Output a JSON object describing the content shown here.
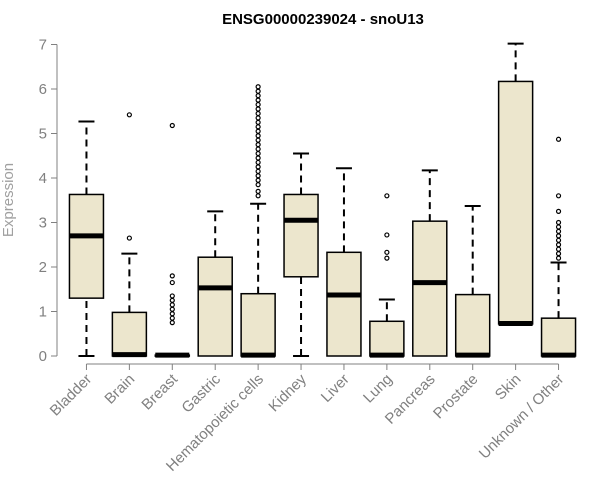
{
  "chart_data": {
    "type": "box",
    "title": "ENSG00000239024 - snoU13",
    "xlabel": "",
    "ylabel": "Expression",
    "ylim": [
      0,
      7
    ],
    "yticks": [
      0,
      1,
      2,
      3,
      4,
      5,
      6,
      7
    ],
    "grid": false,
    "categories": [
      "Bladder",
      "Brain",
      "Breast",
      "Gastric",
      "Hematopoietic cells",
      "Kidney",
      "Liver",
      "Lung",
      "Pancreas",
      "Prostate",
      "Skin",
      "Unknown / Other"
    ],
    "boxes": [
      {
        "min": 0,
        "q1": 1.3,
        "median": 2.7,
        "q3": 3.63,
        "max": 5.27,
        "outliers": []
      },
      {
        "min": 0,
        "q1": 0,
        "median": 0.03,
        "q3": 0.98,
        "max": 2.3,
        "outliers": [
          2.65,
          5.42
        ]
      },
      {
        "min": 0,
        "q1": 0,
        "median": 0.02,
        "q3": 0.02,
        "max": 0.02,
        "outliers": [
          0.75,
          0.85,
          0.95,
          1.05,
          1.15,
          1.25,
          1.35,
          1.65,
          1.8,
          5.18
        ]
      },
      {
        "min": 0,
        "q1": 0,
        "median": 1.53,
        "q3": 2.22,
        "max": 3.25,
        "outliers": []
      },
      {
        "min": 0,
        "q1": 0,
        "median": 0.02,
        "q3": 1.4,
        "max": 3.42,
        "outliers": [
          3.6,
          3.7,
          3.85,
          3.95,
          4.05,
          4.15,
          4.25,
          4.35,
          4.45,
          4.55,
          4.65,
          4.75,
          4.85,
          4.95,
          5.05,
          5.15,
          5.25,
          5.35,
          5.45,
          5.55,
          5.65,
          5.75,
          5.85,
          5.95,
          6.05
        ]
      },
      {
        "min": 0,
        "q1": 1.78,
        "median": 3.05,
        "q3": 3.63,
        "max": 4.55,
        "outliers": []
      },
      {
        "min": 0,
        "q1": 0,
        "median": 1.37,
        "q3": 2.33,
        "max": 4.22,
        "outliers": []
      },
      {
        "min": 0,
        "q1": 0,
        "median": 0.02,
        "q3": 0.78,
        "max": 1.27,
        "outliers": [
          2.2,
          2.33,
          2.72,
          3.6
        ]
      },
      {
        "min": 0,
        "q1": 0,
        "median": 1.65,
        "q3": 3.03,
        "max": 4.17,
        "outliers": []
      },
      {
        "min": 0,
        "q1": 0,
        "median": 0.02,
        "q3": 1.38,
        "max": 3.37,
        "outliers": []
      },
      {
        "min": 0.72,
        "q1": 0.72,
        "median": 0.73,
        "q3": 6.17,
        "max": 7.02,
        "outliers": []
      },
      {
        "min": 0,
        "q1": 0,
        "median": 0.02,
        "q3": 0.85,
        "max": 2.1,
        "outliers": [
          2.2,
          2.3,
          2.4,
          2.5,
          2.6,
          2.7,
          2.8,
          2.9,
          3.0,
          3.25,
          3.6,
          4.87
        ]
      }
    ],
    "colors": {
      "box_fill": "#ece6cd",
      "box_stroke": "#000000",
      "median": "#000000",
      "axis": "#808080",
      "text_muted": "#808080"
    }
  }
}
